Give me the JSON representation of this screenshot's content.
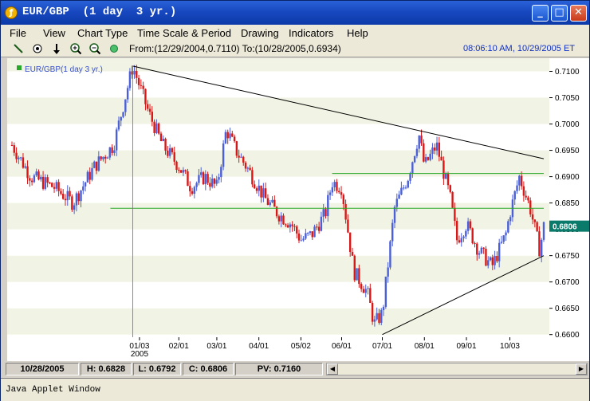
{
  "window": {
    "title": "EUR/GBP  (1 day  3 yr.)",
    "buttons": {
      "minimize": "_",
      "maximize": "□",
      "close": "✕"
    }
  },
  "menu": [
    "File",
    "View",
    "Chart Type",
    "Time Scale & Period",
    "Drawing",
    "Indicators",
    "Help"
  ],
  "toolbar": {
    "tools": [
      "draw-line",
      "crosshair",
      "arrow-down",
      "zoom-in",
      "zoom-out",
      "refresh"
    ],
    "range_text": "From:(12/29/2004,0.7110) To:(10/28/2005,0.6934)",
    "timestamp": "08:06:10 AM, 10/29/2005 ET"
  },
  "chart_data": {
    "type": "line",
    "title": "",
    "legend": "EUR/GBP(1 day  3 yr.)",
    "last_value_label": "0.6806",
    "ylim": [
      0.6595,
      0.7125
    ],
    "y_ticks": [
      "0.7100",
      "0.7050",
      "0.7000",
      "0.6950",
      "0.6900",
      "0.6850",
      "0.6800",
      "0.6750",
      "0.6700",
      "0.6650",
      "0.6600"
    ],
    "x_ticks": [
      "01/03",
      "02/01",
      "03/01",
      "04/01",
      "05/02",
      "06/01",
      "07/01",
      "08/01",
      "09/01",
      "10/03"
    ],
    "x_tick_year": "2005",
    "colors": {
      "up": "#4a5fd8",
      "down": "#d81818",
      "trend": "#000000",
      "level": "#28a828"
    },
    "annotations": {
      "resistance_trendline": [
        [
          "12/29/2004",
          0.711
        ],
        [
          "10/28/2005",
          0.6934
        ]
      ],
      "support_trendline": [
        [
          "07/01/2005",
          0.66
        ],
        [
          "10/28/2005",
          0.675
        ]
      ],
      "horizontal_levels": [
        0.6906,
        0.684
      ]
    },
    "series": [
      {
        "dates": [
          "10/01/2004",
          "10/15/2004",
          "11/01/2004",
          "11/15/2004",
          "12/01/2004",
          "12/15/2004",
          "12/29/2004",
          "01/10/2005",
          "01/20/2005",
          "02/01/2005",
          "02/10/2005",
          "02/20/2005",
          "03/01/2005",
          "03/08/2005",
          "03/15/2005",
          "03/25/2005",
          "04/05/2005",
          "04/15/2005",
          "04/25/2005",
          "05/02/2005",
          "05/10/2005",
          "05/20/2005",
          "05/25/2005",
          "06/01/2005",
          "06/10/2005",
          "06/20/2005",
          "06/25/2005",
          "07/01/2005",
          "07/10/2005",
          "07/20/2005",
          "07/28/2005",
          "08/01/2005",
          "08/10/2005",
          "08/20/2005",
          "08/25/2005",
          "09/01/2005",
          "09/10/2005",
          "09/20/2005",
          "09/30/2005",
          "10/03/2005",
          "10/10/2005",
          "10/18/2005",
          "10/25/2005",
          "10/28/2005"
        ],
        "values": [
          0.696,
          0.69,
          0.688,
          0.685,
          0.692,
          0.696,
          0.711,
          0.702,
          0.696,
          0.692,
          0.688,
          0.69,
          0.688,
          0.699,
          0.695,
          0.691,
          0.686,
          0.683,
          0.681,
          0.678,
          0.679,
          0.683,
          0.689,
          0.688,
          0.672,
          0.668,
          0.662,
          0.664,
          0.684,
          0.69,
          0.698,
          0.692,
          0.696,
          0.686,
          0.678,
          0.681,
          0.676,
          0.673,
          0.679,
          0.683,
          0.69,
          0.684,
          0.676,
          0.6806
        ]
      }
    ]
  },
  "status": {
    "date": "10/28/2005",
    "high": "H: 0.6828",
    "low": "L: 0.6792",
    "close": "C: 0.6806",
    "pv": "PV: 0.7160"
  },
  "applet_text": "Java Applet Window"
}
